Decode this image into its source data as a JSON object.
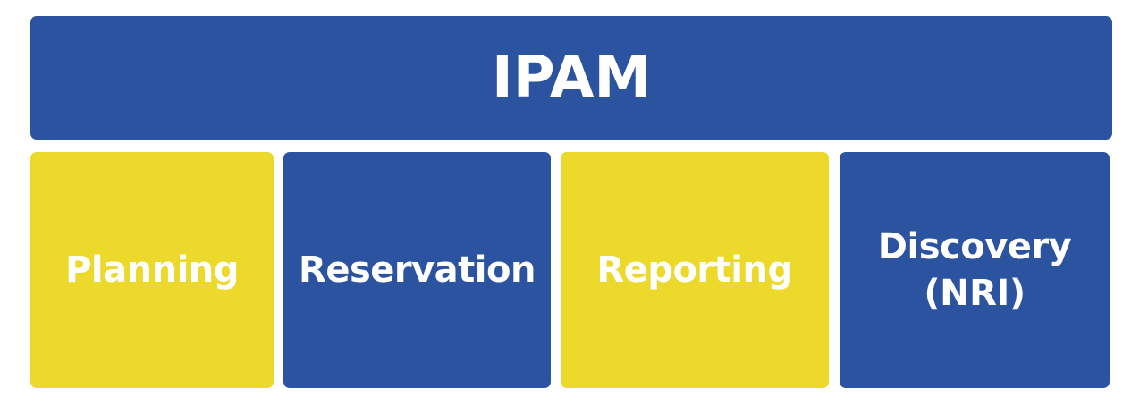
{
  "header": {
    "title": "IPAM",
    "color": "#2b53a0"
  },
  "components": [
    {
      "label": "Planning",
      "color": "#ecd92b"
    },
    {
      "label": "Reservation",
      "color": "#2b53a0"
    },
    {
      "label": "Reporting",
      "color": "#ecd92b"
    },
    {
      "label_line1": "Discovery",
      "label_line2": "(NRI)",
      "color": "#2b53a0"
    }
  ],
  "text_color": "#ffffff"
}
